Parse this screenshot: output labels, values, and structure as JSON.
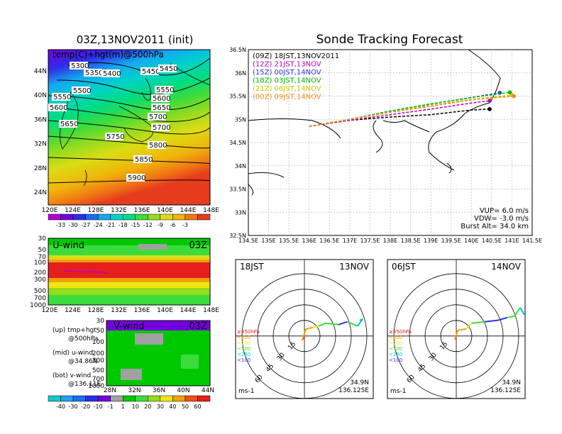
{
  "left_title": "03Z,13NOV2011 (init)",
  "right_title": "Sonde Tracking Forecast",
  "top_map": {
    "label": "temp(C)+hgt(m)@500hPa",
    "lat_labels": [
      "44N",
      "40N",
      "36N",
      "32N",
      "28N",
      "24N"
    ],
    "lon_labels": [
      "120E",
      "124E",
      "128E",
      "132E",
      "136E",
      "140E",
      "144E",
      "148E"
    ],
    "contour_labels": [
      "5300",
      "5350",
      "5400",
      "5450",
      "5450",
      "5500",
      "5550",
      "5550",
      "5600",
      "5600",
      "5650",
      "5650",
      "5700",
      "5700",
      "5750",
      "5800",
      "5850",
      "5900"
    ]
  },
  "temp_colorbar": {
    "labels": [
      "-33",
      "-30",
      "-27",
      "-24",
      "-21",
      "-18",
      "-15",
      "-12",
      "-9",
      "-6",
      "-3"
    ],
    "colors": [
      "#b400d2",
      "#7300dc",
      "#2d2de6",
      "#1e6ef0",
      "#14aaf0",
      "#00d2c8",
      "#00dc82",
      "#3cdc3c",
      "#96dc1e",
      "#dcdc14",
      "#f0b40a",
      "#f07814",
      "#e63c1e"
    ]
  },
  "u_panel": {
    "label": "U-wind",
    "time": "03Z",
    "y_labels": [
      "30",
      "50",
      "70",
      "100",
      "200",
      "300",
      "500",
      "700",
      "1000"
    ],
    "x_labels": [
      "120E",
      "124E",
      "128E",
      "132E",
      "136E",
      "140E",
      "144E",
      "148E"
    ]
  },
  "v_panel": {
    "label": "V-wind",
    "time": "03Z",
    "y_labels": [
      "30",
      "50",
      "100",
      "200",
      "300",
      "500",
      "700",
      "1000"
    ],
    "x_labels": [
      "28N",
      "32N",
      "36N",
      "40N",
      "44N"
    ]
  },
  "notes": [
    {
      "line1": "(up) tmp+hgt",
      "line2": "@500hPa"
    },
    {
      "line1": "(mid) u-wind",
      "line2": "@34.86N"
    },
    {
      "line1": "(bot) v-wind",
      "line2": "@136.11E"
    }
  ],
  "wind_colorbar": {
    "labels": [
      "-40",
      "-30",
      "-20",
      "-10",
      "-1",
      "1",
      "10",
      "20",
      "30",
      "40",
      "50",
      "60"
    ],
    "colors": [
      "#14c8c8",
      "#1ea0f0",
      "#1e6ef0",
      "#2d2de6",
      "#7300dc",
      "#a0a0a0",
      "#00c800",
      "#3cdc3c",
      "#96dc1e",
      "#f0e614",
      "#f0a00a",
      "#f05014",
      "#e61e1e"
    ]
  },
  "chart_data": {
    "type": "line",
    "title": "Sonde Tracking Forecast",
    "xlim": [
      134.5,
      141.5
    ],
    "ylim": [
      32.5,
      36.5
    ],
    "x_ticks": [
      "134.5E",
      "135E",
      "135.5E",
      "136E",
      "136.5E",
      "137E",
      "137.5E",
      "138E",
      "138.5E",
      "139E",
      "139.5E",
      "140E",
      "140.5E",
      "141E",
      "141.5E"
    ],
    "y_ticks": [
      "36.5N",
      "36N",
      "35.5N",
      "35N",
      "34.5N",
      "34N",
      "33.5N",
      "33N",
      "32.5N"
    ],
    "series": [
      {
        "name": "(09Z)  18JST,13NOV2011",
        "color": "#000000",
        "points": [
          [
            136.0,
            34.85
          ],
          [
            137.0,
            34.98
          ],
          [
            138.0,
            35.05
          ],
          [
            139.0,
            35.1
          ],
          [
            140.0,
            35.2
          ],
          [
            140.45,
            35.22
          ]
        ]
      },
      {
        "name": "(12Z)  21JST,13NOV",
        "color": "#b400b4",
        "points": [
          [
            136.0,
            34.85
          ],
          [
            137.0,
            34.98
          ],
          [
            138.0,
            35.1
          ],
          [
            139.0,
            35.22
          ],
          [
            140.0,
            35.35
          ],
          [
            140.45,
            35.4
          ]
        ]
      },
      {
        "name": "(15Z)  00JST,14NOV",
        "color": "#3232dc",
        "points": [
          [
            136.0,
            34.85
          ],
          [
            137.0,
            35.0
          ],
          [
            138.0,
            35.18
          ],
          [
            139.0,
            35.33
          ],
          [
            140.0,
            35.47
          ],
          [
            140.7,
            35.57
          ]
        ]
      },
      {
        "name": "(18Z)  03JST,14NOV",
        "color": "#00b400",
        "points": [
          [
            136.0,
            34.85
          ],
          [
            137.0,
            35.0
          ],
          [
            138.0,
            35.18
          ],
          [
            139.0,
            35.33
          ],
          [
            140.0,
            35.47
          ],
          [
            140.95,
            35.58
          ]
        ]
      },
      {
        "name": "(21Z)  06JST,14NOV",
        "color": "#c8c800",
        "points": [
          [
            136.0,
            34.85
          ],
          [
            137.0,
            35.0
          ],
          [
            138.0,
            35.16
          ],
          [
            139.0,
            35.3
          ],
          [
            140.0,
            35.43
          ],
          [
            141.0,
            35.52
          ]
        ]
      },
      {
        "name": "(00Z)  09JST,14NOV",
        "color": "#f08c1e",
        "points": [
          [
            136.0,
            34.85
          ],
          [
            137.0,
            35.0
          ],
          [
            138.0,
            35.15
          ],
          [
            139.0,
            35.28
          ],
          [
            140.0,
            35.42
          ],
          [
            141.05,
            35.5
          ]
        ]
      }
    ],
    "params": [
      "VUP=  6.0 m/s",
      "VDW= -3.0 m/s",
      "Burst Alt=  34.0 km"
    ]
  },
  "hodographs": [
    {
      "time": "18JST",
      "date": "13NOV",
      "lat": "34.9N",
      "lon": "136.125E",
      "unit": "ms-1"
    },
    {
      "time": "06JST",
      "date": "14NOV",
      "lat": "34.9N",
      "lon": "136.125E",
      "unit": "ms-1"
    }
  ],
  "hodo_rings": [
    "15",
    "30",
    "45",
    "60"
  ],
  "hodo_legend": [
    {
      "label": "≥850hPa",
      "color": "#e61e1e"
    },
    {
      "label": "<850",
      "color": "#f0a00a"
    },
    {
      "label": "<700",
      "color": "#f0e614"
    },
    {
      "label": "<500",
      "color": "#3cdc3c"
    },
    {
      "label": "<250",
      "color": "#00c8c8"
    },
    {
      "label": "<100",
      "color": "#3232dc"
    }
  ]
}
